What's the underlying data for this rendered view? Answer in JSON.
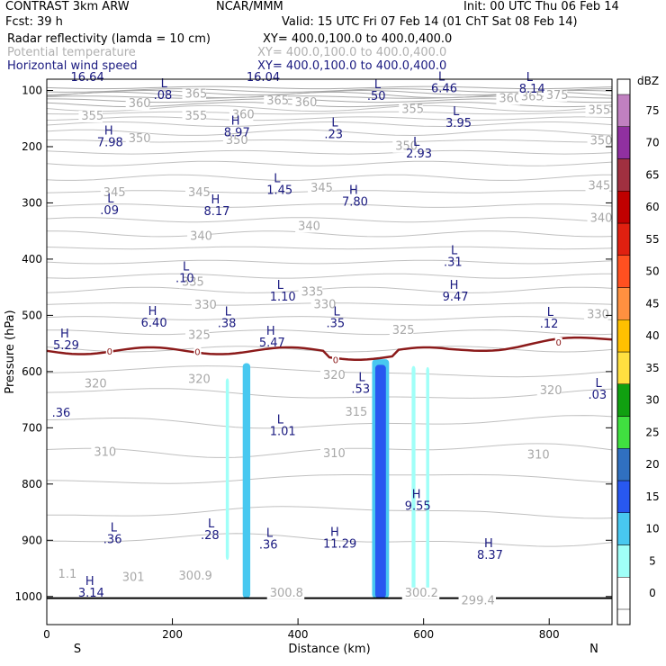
{
  "header": {
    "model": "CONTRAST  3km ARW",
    "org": "NCAR/MMM",
    "init": "Init: 00 UTC Thu 06 Feb 14",
    "fcst": "Fcst:   39 h",
    "valid": "Valid: 15 UTC Fri 07 Feb 14 (01 ChT Sat 08 Feb 14)",
    "field1": "Radar reflectivity (lamda = 10 cm)",
    "field1_xy": "XY= 400.0,100.0 to 400.0,400.0",
    "field2": "Potential temperature",
    "field2_xy": "XY= 400.0,100.0 to 400.0,400.0",
    "field3": "Horizontal wind speed",
    "field3_xy": "XY= 400.0,100.0 to 400.0,400.0"
  },
  "chart_data": {
    "type": "contour-cross-section",
    "xlabel": "Distance (km)",
    "ylabel": "Pressure (hPa)",
    "xlim": [
      0,
      900
    ],
    "ylim": [
      1050,
      80
    ],
    "x_ticks": [
      0,
      200,
      400,
      600,
      800
    ],
    "y_ticks": [
      100,
      200,
      300,
      400,
      500,
      600,
      700,
      800,
      900,
      1000
    ],
    "left_end_label": "S",
    "right_end_label": "N",
    "colorbar": {
      "unit": "dBZ",
      "levels": [
        0,
        5,
        10,
        15,
        20,
        25,
        30,
        35,
        40,
        45,
        50,
        55,
        60,
        65,
        70,
        75
      ],
      "colors": [
        "#ffffff",
        "#a0fff8",
        "#48c8f0",
        "#2858f0",
        "#3070c0",
        "#40e040",
        "#10a010",
        "#ffe040",
        "#ffc000",
        "#ff9040",
        "#ff5020",
        "#e02010",
        "#c00000",
        "#a03040",
        "#9030a0",
        "#c080c0"
      ]
    },
    "theta_labels": [
      {
        "t": "375",
        "x": 795,
        "p": 115
      },
      {
        "t": "365",
        "x": 220,
        "p": 113
      },
      {
        "t": "360",
        "x": 130,
        "p": 130
      },
      {
        "t": "365",
        "x": 350,
        "p": 125
      },
      {
        "t": "360",
        "x": 395,
        "p": 128
      },
      {
        "t": "360",
        "x": 720,
        "p": 121
      },
      {
        "t": "365",
        "x": 755,
        "p": 118
      },
      {
        "t": "355",
        "x": 55,
        "p": 152
      },
      {
        "t": "355",
        "x": 220,
        "p": 152
      },
      {
        "t": "360",
        "x": 295,
        "p": 150
      },
      {
        "t": "355",
        "x": 565,
        "p": 140
      },
      {
        "t": "355",
        "x": 862,
        "p": 142
      },
      {
        "t": "350",
        "x": 130,
        "p": 192
      },
      {
        "t": "350",
        "x": 285,
        "p": 195
      },
      {
        "t": "350",
        "x": 555,
        "p": 206
      },
      {
        "t": "350",
        "x": 865,
        "p": 196
      },
      {
        "t": "345",
        "x": 90,
        "p": 288
      },
      {
        "t": "345",
        "x": 225,
        "p": 288
      },
      {
        "t": "345",
        "x": 420,
        "p": 280
      },
      {
        "t": "345",
        "x": 862,
        "p": 276
      },
      {
        "t": "340",
        "x": 228,
        "p": 366
      },
      {
        "t": "340",
        "x": 400,
        "p": 348
      },
      {
        "t": "340",
        "x": 865,
        "p": 334
      },
      {
        "t": "335",
        "x": 215,
        "p": 447
      },
      {
        "t": "335",
        "x": 405,
        "p": 465
      },
      {
        "t": "330",
        "x": 235,
        "p": 488
      },
      {
        "t": "330",
        "x": 425,
        "p": 487
      },
      {
        "t": "330",
        "x": 860,
        "p": 505
      },
      {
        "t": "325",
        "x": 225,
        "p": 542
      },
      {
        "t": "325",
        "x": 550,
        "p": 533
      },
      {
        "t": "320",
        "x": 60,
        "p": 628
      },
      {
        "t": "320",
        "x": 225,
        "p": 620
      },
      {
        "t": "320",
        "x": 440,
        "p": 613
      },
      {
        "t": "320",
        "x": 785,
        "p": 640
      },
      {
        "t": "315",
        "x": 475,
        "p": 679
      },
      {
        "t": "310",
        "x": 75,
        "p": 750
      },
      {
        "t": "310",
        "x": 440,
        "p": 752
      },
      {
        "t": "310",
        "x": 765,
        "p": 755
      },
      {
        "t": "301",
        "x": 120,
        "p": 972
      },
      {
        "t": "300.9",
        "x": 210,
        "p": 970
      },
      {
        "t": "300.8",
        "x": 355,
        "p": 1000
      },
      {
        "t": "300.2",
        "x": 570,
        "p": 1000
      },
      {
        "t": "299.4",
        "x": 660,
        "p": 1014
      },
      {
        "t": "1.1",
        "x": 18,
        "p": 967
      }
    ],
    "wind_labels": [
      {
        "hl": "",
        "v": "16.64",
        "x": 38,
        "p": 83
      },
      {
        "hl": "L",
        "v": ".08",
        "x": 170,
        "p": 115
      },
      {
        "hl": "",
        "v": "16.04",
        "x": 318,
        "p": 83
      },
      {
        "hl": "L",
        "v": ".50",
        "x": 510,
        "p": 117
      },
      {
        "hl": "L",
        "v": "6.46",
        "x": 612,
        "p": 103
      },
      {
        "hl": "L",
        "v": "8.14",
        "x": 752,
        "p": 104
      },
      {
        "hl": "L",
        "v": ".23",
        "x": 442,
        "p": 185
      },
      {
        "hl": "L",
        "v": "3.95",
        "x": 635,
        "p": 165
      },
      {
        "hl": "H",
        "v": "7.98",
        "x": 80,
        "p": 199
      },
      {
        "hl": "H",
        "v": "8.97",
        "x": 282,
        "p": 182
      },
      {
        "hl": "L",
        "v": "2.93",
        "x": 572,
        "p": 219
      },
      {
        "hl": "L",
        "v": "1.45",
        "x": 350,
        "p": 284
      },
      {
        "hl": "H",
        "v": "7.80",
        "x": 470,
        "p": 305
      },
      {
        "hl": "L",
        "v": ".09",
        "x": 85,
        "p": 320
      },
      {
        "hl": "H",
        "v": "8.17",
        "x": 250,
        "p": 322
      },
      {
        "hl": "L",
        "v": ".31",
        "x": 632,
        "p": 412
      },
      {
        "hl": "L",
        "v": ".10",
        "x": 205,
        "p": 441
      },
      {
        "hl": "L",
        "v": "1.10",
        "x": 355,
        "p": 474
      },
      {
        "hl": "H",
        "v": "9.47",
        "x": 630,
        "p": 474
      },
      {
        "hl": "H",
        "v": "6.40",
        "x": 150,
        "p": 520
      },
      {
        "hl": "L",
        "v": ".38",
        "x": 272,
        "p": 521
      },
      {
        "hl": "L",
        "v": ".35",
        "x": 445,
        "p": 521
      },
      {
        "hl": "L",
        "v": ".12",
        "x": 785,
        "p": 522
      },
      {
        "hl": "H",
        "v": "5.29",
        "x": 10,
        "p": 560
      },
      {
        "hl": "H",
        "v": "5.47",
        "x": 338,
        "p": 555
      },
      {
        "hl": "L",
        "v": ".53",
        "x": 485,
        "p": 638
      },
      {
        "hl": "L",
        "v": ".03",
        "x": 862,
        "p": 648
      },
      {
        "hl": "",
        "v": ".36",
        "x": 8,
        "p": 680
      },
      {
        "hl": "L",
        "v": "1.01",
        "x": 355,
        "p": 713
      },
      {
        "hl": "H",
        "v": "9.55",
        "x": 570,
        "p": 846
      },
      {
        "hl": "L",
        "v": ".36",
        "x": 90,
        "p": 905
      },
      {
        "hl": "L",
        "v": ".28",
        "x": 245,
        "p": 898
      },
      {
        "hl": "L",
        "v": ".36",
        "x": 338,
        "p": 915
      },
      {
        "hl": "H",
        "v": "11.29",
        "x": 440,
        "p": 913
      },
      {
        "hl": "H",
        "v": "8.37",
        "x": 685,
        "p": 933
      },
      {
        "hl": "H",
        "v": "3.14",
        "x": 50,
        "p": 1000
      }
    ],
    "zero_label": "0"
  }
}
